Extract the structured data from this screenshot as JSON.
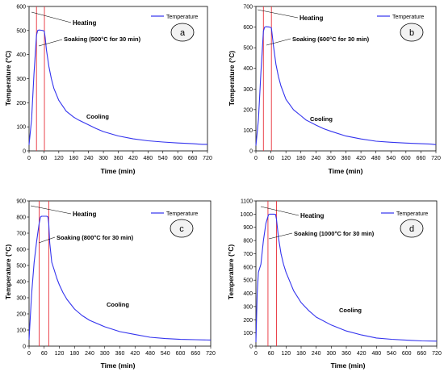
{
  "colors": {
    "series": "#3333ee",
    "marker": "#e8303a",
    "axis": "#000000",
    "badge_fill": "#f2f2f2"
  },
  "chart_data": [
    {
      "type": "line",
      "panel_label": "a",
      "xlabel": "Time (min)",
      "ylabel": "Temperature (°C)",
      "xlim": [
        0,
        720
      ],
      "ylim": [
        0,
        600
      ],
      "x_ticks": [
        0,
        60,
        120,
        180,
        240,
        300,
        360,
        420,
        480,
        540,
        600,
        660,
        720
      ],
      "y_ticks": [
        0,
        100,
        200,
        300,
        400,
        500,
        600
      ],
      "legend": "Temperature",
      "legend_position": "top-right",
      "markers_x": [
        30,
        62
      ],
      "annotations": {
        "heating": "Heating",
        "soaking": "Soaking (500°C for 30 min)",
        "cooling": "Cooling"
      },
      "series": [
        {
          "name": "Temperature",
          "x": [
            0,
            10,
            20,
            30,
            35,
            40,
            50,
            55,
            60,
            62,
            65,
            70,
            80,
            90,
            100,
            120,
            150,
            180,
            200,
            240,
            270,
            300,
            360,
            420,
            480,
            540,
            600,
            660,
            700,
            720
          ],
          "y": [
            25,
            130,
            320,
            480,
            500,
            502,
            501,
            500,
            498,
            495,
            470,
            420,
            350,
            300,
            260,
            210,
            165,
            140,
            128,
            108,
            93,
            80,
            62,
            50,
            42,
            37,
            33,
            30,
            27,
            27
          ]
        }
      ]
    },
    {
      "type": "line",
      "panel_label": "b",
      "xlabel": "Time (min)",
      "ylabel": "Temperature (°C)",
      "xlim": [
        0,
        720
      ],
      "ylim": [
        0,
        700
      ],
      "x_ticks": [
        0,
        60,
        120,
        180,
        240,
        300,
        360,
        420,
        480,
        540,
        600,
        660,
        720
      ],
      "y_ticks": [
        0,
        100,
        200,
        300,
        400,
        500,
        600,
        700
      ],
      "legend": "Temperature",
      "legend_position": "top-right",
      "markers_x": [
        30,
        62
      ],
      "annotations": {
        "heating": "Heating",
        "soaking": "Soaking (600°C for 30 min)",
        "cooling": "Cooling"
      },
      "series": [
        {
          "name": "Temperature",
          "x": [
            0,
            10,
            20,
            30,
            35,
            40,
            50,
            55,
            60,
            62,
            65,
            70,
            80,
            90,
            100,
            120,
            150,
            180,
            200,
            240,
            270,
            300,
            360,
            420,
            480,
            540,
            600,
            660,
            700,
            720
          ],
          "y": [
            25,
            150,
            380,
            580,
            600,
            602,
            601,
            600,
            598,
            595,
            565,
            510,
            420,
            360,
            315,
            250,
            200,
            170,
            150,
            125,
            108,
            95,
            72,
            58,
            47,
            42,
            38,
            35,
            33,
            30
          ]
        }
      ]
    },
    {
      "type": "line",
      "panel_label": "c",
      "xlabel": "Time (min)",
      "ylabel": "Temperature (°C)",
      "xlim": [
        0,
        720
      ],
      "ylim": [
        0,
        900
      ],
      "x_ticks": [
        0,
        60,
        120,
        180,
        240,
        300,
        360,
        420,
        480,
        540,
        600,
        660,
        720
      ],
      "y_ticks": [
        0,
        100,
        200,
        300,
        400,
        500,
        600,
        700,
        800,
        900
      ],
      "legend": "Temperature",
      "legend_position": "top-right",
      "markers_x": [
        40,
        78
      ],
      "annotations": {
        "heating": "Heating",
        "soaking": "Soaking (800°C for 30 min)",
        "cooling": "Cooling"
      },
      "series": [
        {
          "name": "Temperature",
          "x": [
            0,
            10,
            20,
            30,
            40,
            45,
            50,
            60,
            70,
            75,
            78,
            82,
            90,
            100,
            110,
            120,
            135,
            150,
            180,
            210,
            240,
            300,
            360,
            420,
            480,
            540,
            600,
            660,
            720
          ],
          "y": [
            40,
            320,
            520,
            650,
            760,
            800,
            805,
            805,
            805,
            800,
            760,
            640,
            520,
            470,
            420,
            380,
            330,
            290,
            230,
            190,
            160,
            120,
            90,
            72,
            55,
            47,
            42,
            40,
            38
          ]
        }
      ]
    },
    {
      "type": "line",
      "panel_label": "d",
      "xlabel": "Time (min)",
      "ylabel": "Temperature (°C)",
      "xlim": [
        0,
        720
      ],
      "ylim": [
        0,
        1100
      ],
      "x_ticks": [
        0,
        60,
        120,
        180,
        240,
        300,
        360,
        420,
        480,
        540,
        600,
        660,
        720
      ],
      "y_ticks": [
        0,
        100,
        200,
        300,
        400,
        500,
        600,
        700,
        800,
        900,
        1000,
        1100
      ],
      "legend": "Temperature",
      "legend_position": "top-right",
      "markers_x": [
        48,
        82
      ],
      "annotations": {
        "heating": "Heating",
        "soaking": "Soaking (1000°C for 30 min)",
        "cooling": "Cooling"
      },
      "series": [
        {
          "name": "Temperature",
          "x": [
            0,
            5,
            10,
            20,
            30,
            40,
            50,
            55,
            60,
            70,
            78,
            82,
            90,
            100,
            110,
            120,
            135,
            150,
            180,
            210,
            240,
            300,
            360,
            420,
            480,
            540,
            600,
            660,
            720
          ],
          "y": [
            30,
            400,
            560,
            620,
            800,
            930,
            995,
            1000,
            1000,
            1000,
            998,
            960,
            820,
            700,
            620,
            560,
            490,
            420,
            330,
            270,
            220,
            160,
            115,
            85,
            62,
            52,
            45,
            40,
            38
          ]
        }
      ]
    }
  ]
}
